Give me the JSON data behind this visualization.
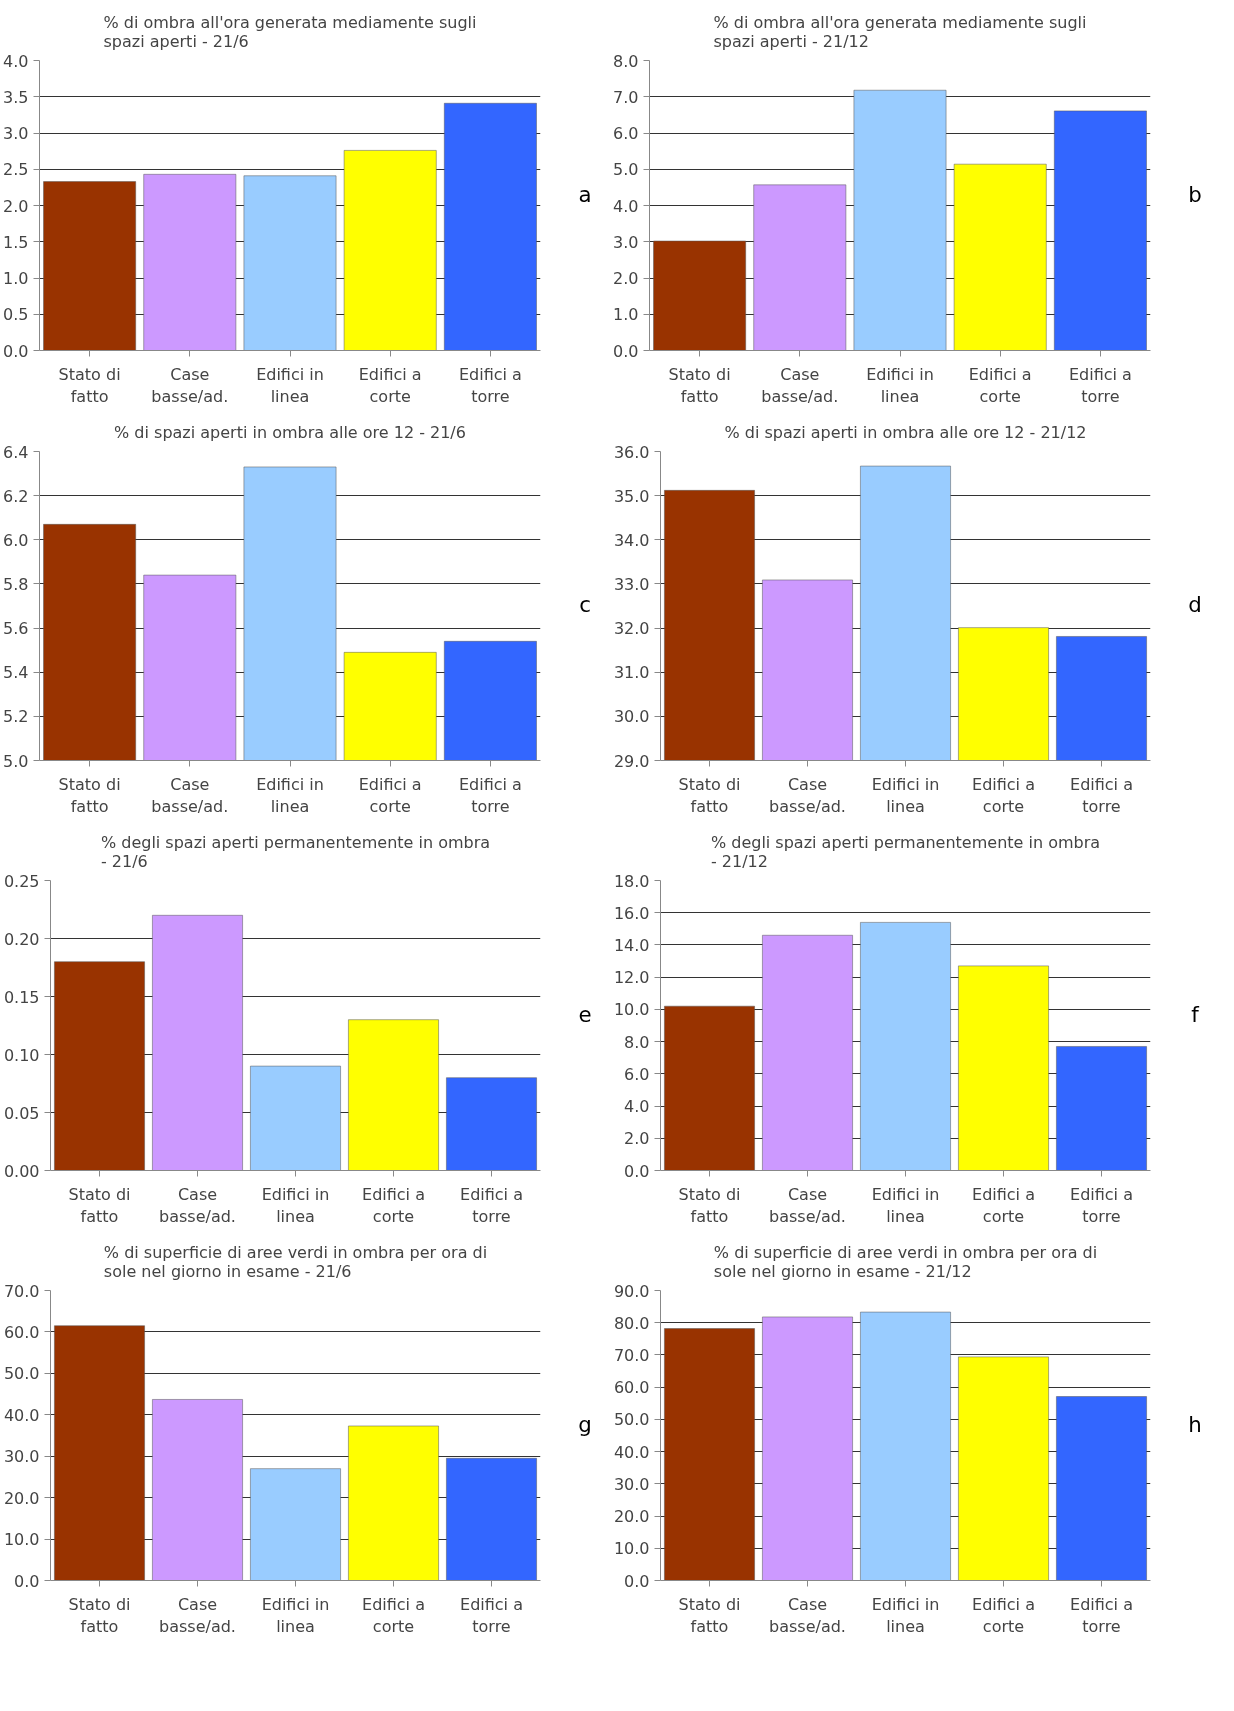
{
  "chart_data": [
    {
      "type": "bar",
      "title": "% di ombra all'ora generata mediamente sugli\nspazi aperti - 21/6",
      "categories": [
        "Stato di fatto",
        "Case basse/ad.",
        "Edifici in linea",
        "Edifici a corte",
        "Edifici a torre"
      ],
      "values": [
        2.33,
        2.43,
        2.41,
        2.76,
        3.41
      ],
      "colors": [
        "#993300",
        "#cc99ff",
        "#99ccff",
        "#ffff00",
        "#3366ff"
      ],
      "ylim": [
        0,
        4
      ],
      "yticks": [
        {
          "value": 0,
          "label": "0.0"
        },
        {
          "value": 0.5,
          "label": "0.5"
        },
        {
          "value": 1,
          "label": "1.0"
        },
        {
          "value": 1.5,
          "label": "1.5"
        },
        {
          "value": 2,
          "label": "2.0"
        },
        {
          "value": 2.5,
          "label": "2.5"
        },
        {
          "value": 3,
          "label": "3.0"
        },
        {
          "value": 3.5,
          "label": "3.5"
        },
        {
          "value": 4,
          "label": "4.0"
        }
      ],
      "grid": "y",
      "annotations": [
        "a"
      ]
    },
    {
      "type": "bar",
      "title": "% di ombra all'ora generata mediamente sugli\nspazi aperti - 21/12",
      "categories": [
        "Stato di fatto",
        "Case basse/ad.",
        "Edifici in linea",
        "Edifici a corte",
        "Edifici a torre"
      ],
      "values": [
        3.02,
        4.57,
        7.18,
        5.14,
        6.61
      ],
      "colors": [
        "#993300",
        "#cc99ff",
        "#99ccff",
        "#ffff00",
        "#3366ff"
      ],
      "ylim": [
        0,
        8
      ],
      "yticks": [
        {
          "value": 0,
          "label": "0.0"
        },
        {
          "value": 1,
          "label": "1.0"
        },
        {
          "value": 2,
          "label": "2.0"
        },
        {
          "value": 3,
          "label": "3.0"
        },
        {
          "value": 4,
          "label": "4.0"
        },
        {
          "value": 5,
          "label": "5.0"
        },
        {
          "value": 6,
          "label": "6.0"
        },
        {
          "value": 7,
          "label": "7.0"
        },
        {
          "value": 8,
          "label": "8.0"
        }
      ],
      "grid": "y",
      "annotations": [
        "b"
      ]
    },
    {
      "type": "bar",
      "title": "% di spazi aperti in ombra alle ore 12 - 21/6",
      "categories": [
        "Stato di fatto",
        "Case basse/ad.",
        "Edifici in linea",
        "Edifici a corte",
        "Edifici a torre"
      ],
      "values": [
        6.07,
        5.84,
        6.33,
        5.49,
        5.54
      ],
      "colors": [
        "#993300",
        "#cc99ff",
        "#99ccff",
        "#ffff00",
        "#3366ff"
      ],
      "ylim": [
        5,
        6.4
      ],
      "yticks": [
        {
          "value": 5,
          "label": "5.0"
        },
        {
          "value": 5.2,
          "label": "5.2"
        },
        {
          "value": 5.4,
          "label": "5.4"
        },
        {
          "value": 5.6,
          "label": "5.6"
        },
        {
          "value": 5.8,
          "label": "5.8"
        },
        {
          "value": 6,
          "label": "6.0"
        },
        {
          "value": 6.2,
          "label": "6.2"
        },
        {
          "value": 6.4,
          "label": "6.4"
        }
      ],
      "grid": "y",
      "annotations": [
        "c"
      ]
    },
    {
      "type": "bar",
      "title": "% di spazi aperti in ombra alle ore 12 - 21/12",
      "categories": [
        "Stato di fatto",
        "Case basse/ad.",
        "Edifici in linea",
        "Edifici a corte",
        "Edifici a torre"
      ],
      "values": [
        35.12,
        33.09,
        35.67,
        32.01,
        31.81
      ],
      "colors": [
        "#993300",
        "#cc99ff",
        "#99ccff",
        "#ffff00",
        "#3366ff"
      ],
      "ylim": [
        29,
        36
      ],
      "yticks": [
        {
          "value": 29,
          "label": "29.0"
        },
        {
          "value": 30,
          "label": "30.0"
        },
        {
          "value": 31,
          "label": "31.0"
        },
        {
          "value": 32,
          "label": "32.0"
        },
        {
          "value": 33,
          "label": "33.0"
        },
        {
          "value": 34,
          "label": "34.0"
        },
        {
          "value": 35,
          "label": "35.0"
        },
        {
          "value": 36,
          "label": "36.0"
        }
      ],
      "grid": "y",
      "annotations": [
        "d"
      ]
    },
    {
      "type": "bar",
      "title": "% degli spazi aperti permanentemente in ombra\n- 21/6",
      "categories": [
        "Stato di fatto",
        "Case basse/ad.",
        "Edifici in linea",
        "Edifici a corte",
        "Edifici a torre"
      ],
      "values": [
        0.18,
        0.22,
        0.09,
        0.13,
        0.08
      ],
      "colors": [
        "#993300",
        "#cc99ff",
        "#99ccff",
        "#ffff00",
        "#3366ff"
      ],
      "ylim": [
        0,
        0.25
      ],
      "yticks": [
        {
          "value": 0,
          "label": "0.00"
        },
        {
          "value": 0.05,
          "label": "0.05"
        },
        {
          "value": 0.1,
          "label": "0.10"
        },
        {
          "value": 0.15,
          "label": "0.15"
        },
        {
          "value": 0.2,
          "label": "0.20"
        },
        {
          "value": 0.25,
          "label": "0.25"
        }
      ],
      "grid": "y",
      "annotations": [
        "e"
      ]
    },
    {
      "type": "bar",
      "title": "% degli spazi aperti permanentemente in ombra\n- 21/12",
      "categories": [
        "Stato di fatto",
        "Case basse/ad.",
        "Edifici in linea",
        "Edifici a corte",
        "Edifici a torre"
      ],
      "values": [
        10.2,
        14.6,
        15.4,
        12.7,
        7.7
      ],
      "colors": [
        "#993300",
        "#cc99ff",
        "#99ccff",
        "#ffff00",
        "#3366ff"
      ],
      "ylim": [
        0,
        18
      ],
      "yticks": [
        {
          "value": 0,
          "label": "0.0"
        },
        {
          "value": 2,
          "label": "2.0"
        },
        {
          "value": 4,
          "label": "4.0"
        },
        {
          "value": 6,
          "label": "6.0"
        },
        {
          "value": 8,
          "label": "8.0"
        },
        {
          "value": 10,
          "label": "10.0"
        },
        {
          "value": 12,
          "label": "12.0"
        },
        {
          "value": 14,
          "label": "14.0"
        },
        {
          "value": 16,
          "label": "16.0"
        },
        {
          "value": 18,
          "label": "18.0"
        }
      ],
      "grid": "y",
      "annotations": [
        "f"
      ]
    },
    {
      "type": "bar",
      "title": "% di superficie di aree verdi in ombra per ora di\nsole nel giorno in esame - 21/6",
      "categories": [
        "Stato di fatto",
        "Case basse/ad.",
        "Edifici in linea",
        "Edifici a corte",
        "Edifici a torre"
      ],
      "values": [
        61.5,
        43.7,
        27.0,
        37.3,
        29.5
      ],
      "colors": [
        "#993300",
        "#cc99ff",
        "#99ccff",
        "#ffff00",
        "#3366ff"
      ],
      "ylim": [
        0,
        70
      ],
      "yticks": [
        {
          "value": 0,
          "label": "0.0"
        },
        {
          "value": 10,
          "label": "10.0"
        },
        {
          "value": 20,
          "label": "20.0"
        },
        {
          "value": 30,
          "label": "30.0"
        },
        {
          "value": 40,
          "label": "40.0"
        },
        {
          "value": 50,
          "label": "50.0"
        },
        {
          "value": 60,
          "label": "60.0"
        },
        {
          "value": 70,
          "label": "70.0"
        }
      ],
      "grid": "y",
      "annotations": [
        "g"
      ]
    },
    {
      "type": "bar",
      "title": "% di superficie di aree verdi in ombra per ora di\nsole nel giorno in esame - 21/12",
      "categories": [
        "Stato di fatto",
        "Case basse/ad.",
        "Edifici in linea",
        "Edifici a corte",
        "Edifici a torre"
      ],
      "values": [
        78.2,
        81.8,
        83.3,
        69.4,
        57.1
      ],
      "colors": [
        "#993300",
        "#cc99ff",
        "#99ccff",
        "#ffff00",
        "#3366ff"
      ],
      "ylim": [
        0,
        90
      ],
      "yticks": [
        {
          "value": 0,
          "label": "0.0"
        },
        {
          "value": 10,
          "label": "10.0"
        },
        {
          "value": 20,
          "label": "20.0"
        },
        {
          "value": 30,
          "label": "30.0"
        },
        {
          "value": 40,
          "label": "40.0"
        },
        {
          "value": 50,
          "label": "50.0"
        },
        {
          "value": 60,
          "label": "60.0"
        },
        {
          "value": 70,
          "label": "70.0"
        },
        {
          "value": 80,
          "label": "80.0"
        },
        {
          "value": 90,
          "label": "90.0"
        }
      ],
      "grid": "y",
      "annotations": [
        "h"
      ]
    }
  ]
}
